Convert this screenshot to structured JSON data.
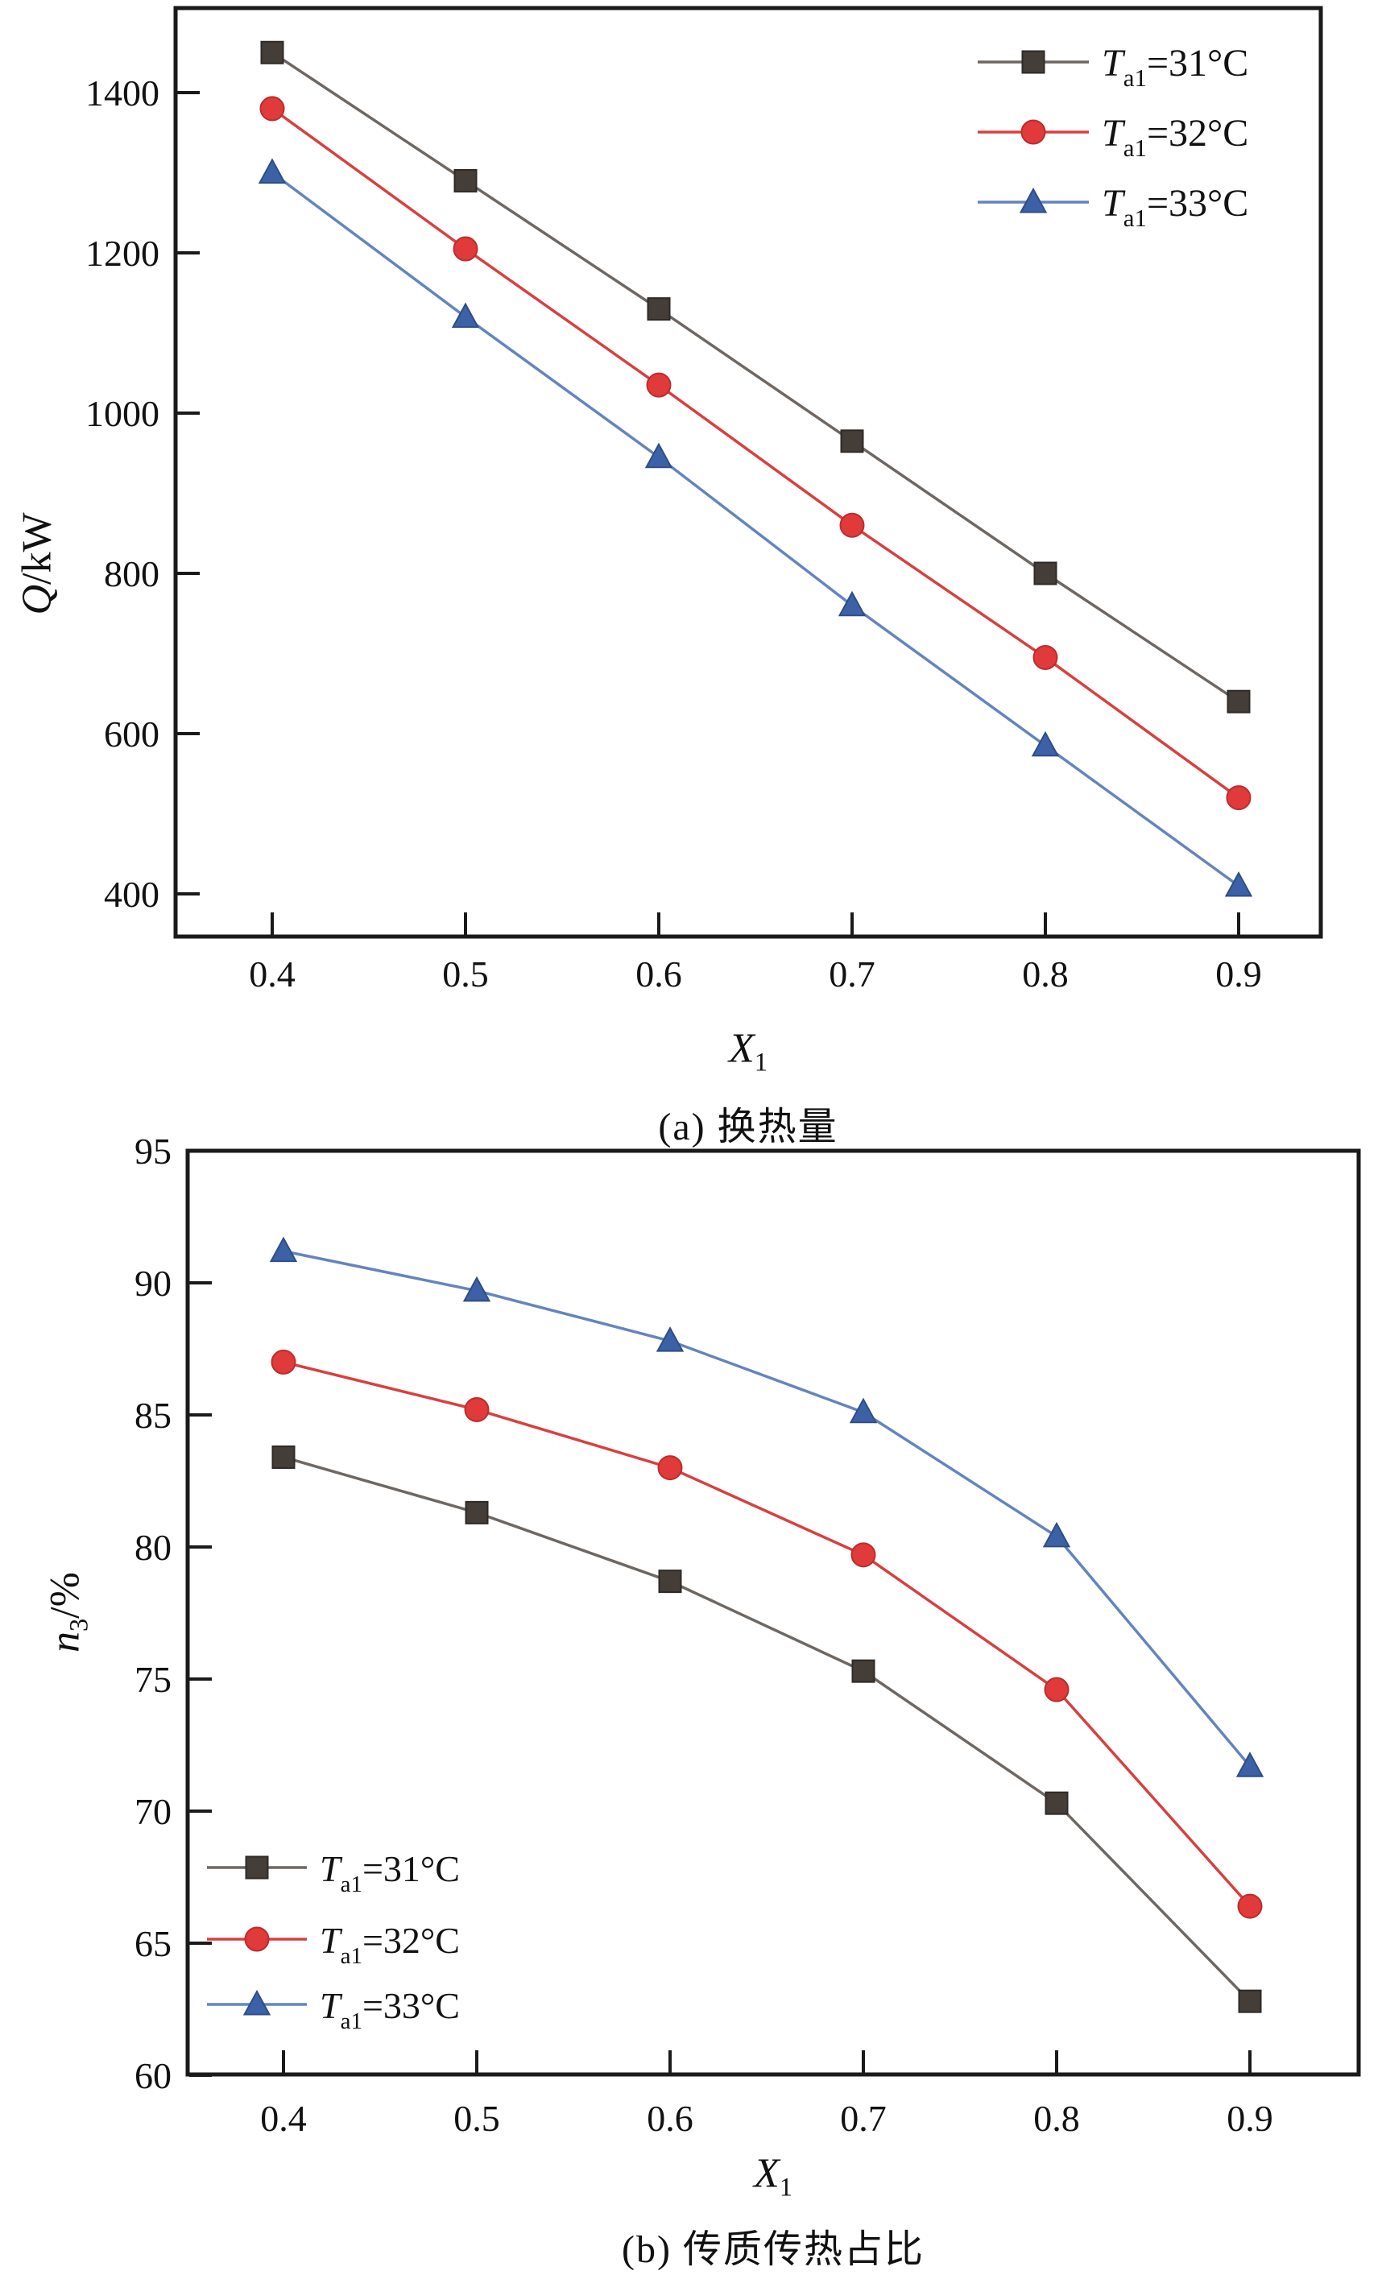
{
  "figure_background": "#ffffff",
  "axis_color": "#1a1a1a",
  "chart_data": [
    {
      "type": "line",
      "panel": "a",
      "title": "(a) 换热量",
      "xlabel": {
        "base": "X",
        "sub": "1"
      },
      "ylabel": {
        "base": "Q",
        "sub": "",
        "post": "/kW"
      },
      "x": [
        0.4,
        0.5,
        0.6,
        0.7,
        0.8,
        0.9
      ],
      "xticks": [
        "0.4",
        "0.5",
        "0.6",
        "0.7",
        "0.8",
        "0.9"
      ],
      "yticks": [
        400,
        600,
        800,
        1000,
        1200,
        1400
      ],
      "xlim": [
        0.35,
        0.94
      ],
      "ylim": [
        347,
        1504
      ],
      "grid": false,
      "legend_position": "top-right",
      "series": [
        {
          "name": "Ta1=31°C",
          "label": {
            "symbol": "T",
            "sub": "a1",
            "value": "=31°C"
          },
          "marker": "square",
          "marker_color": "#443d38",
          "line_color": "#6e6762",
          "values": [
            1450,
            1290,
            1130,
            965,
            800,
            640
          ]
        },
        {
          "name": "Ta1=32°C",
          "label": {
            "symbol": "T",
            "sub": "a1",
            "value": "=32°C"
          },
          "marker": "circle",
          "marker_color": "#e13a3a",
          "line_color": "#d84040",
          "values": [
            1380,
            1205,
            1035,
            860,
            695,
            520
          ]
        },
        {
          "name": "Ta1=33°C",
          "label": {
            "symbol": "T",
            "sub": "a1",
            "value": "=33°C"
          },
          "marker": "triangle",
          "marker_color": "#3d61a6",
          "line_color": "#6584be",
          "values": [
            1300,
            1120,
            945,
            760,
            585,
            410
          ]
        }
      ]
    },
    {
      "type": "line",
      "panel": "b",
      "title": "(b) 传质传热占比",
      "xlabel": {
        "base": "X",
        "sub": "1"
      },
      "ylabel": {
        "base": "n",
        "sub": "3",
        "post": "/%"
      },
      "x": [
        0.4,
        0.5,
        0.6,
        0.7,
        0.8,
        0.9
      ],
      "xticks": [
        "0.4",
        "0.5",
        "0.6",
        "0.7",
        "0.8",
        "0.9"
      ],
      "yticks": [
        60,
        65,
        70,
        75,
        80,
        85,
        90,
        95
      ],
      "xlim": [
        0.35,
        0.96
      ],
      "ylim": [
        60,
        95
      ],
      "grid": false,
      "legend_position": "bottom-left",
      "series": [
        {
          "name": "Ta1=31°C",
          "label": {
            "symbol": "T",
            "sub": "a1",
            "value": "=31°C"
          },
          "marker": "square",
          "marker_color": "#443d38",
          "line_color": "#6e6762",
          "values": [
            83.4,
            81.3,
            78.7,
            75.3,
            70.3,
            62.8
          ]
        },
        {
          "name": "Ta1=32°C",
          "label": {
            "symbol": "T",
            "sub": "a1",
            "value": "=32°C"
          },
          "marker": "circle",
          "marker_color": "#e13a3a",
          "line_color": "#d84040",
          "values": [
            87.0,
            85.2,
            83.0,
            79.7,
            74.6,
            66.4
          ]
        },
        {
          "name": "Ta1=33°C",
          "label": {
            "symbol": "T",
            "sub": "a1",
            "value": "=33°C"
          },
          "marker": "triangle",
          "marker_color": "#3d61a6",
          "line_color": "#6584be",
          "values": [
            91.2,
            89.7,
            87.8,
            85.1,
            80.4,
            71.7
          ]
        }
      ]
    }
  ]
}
